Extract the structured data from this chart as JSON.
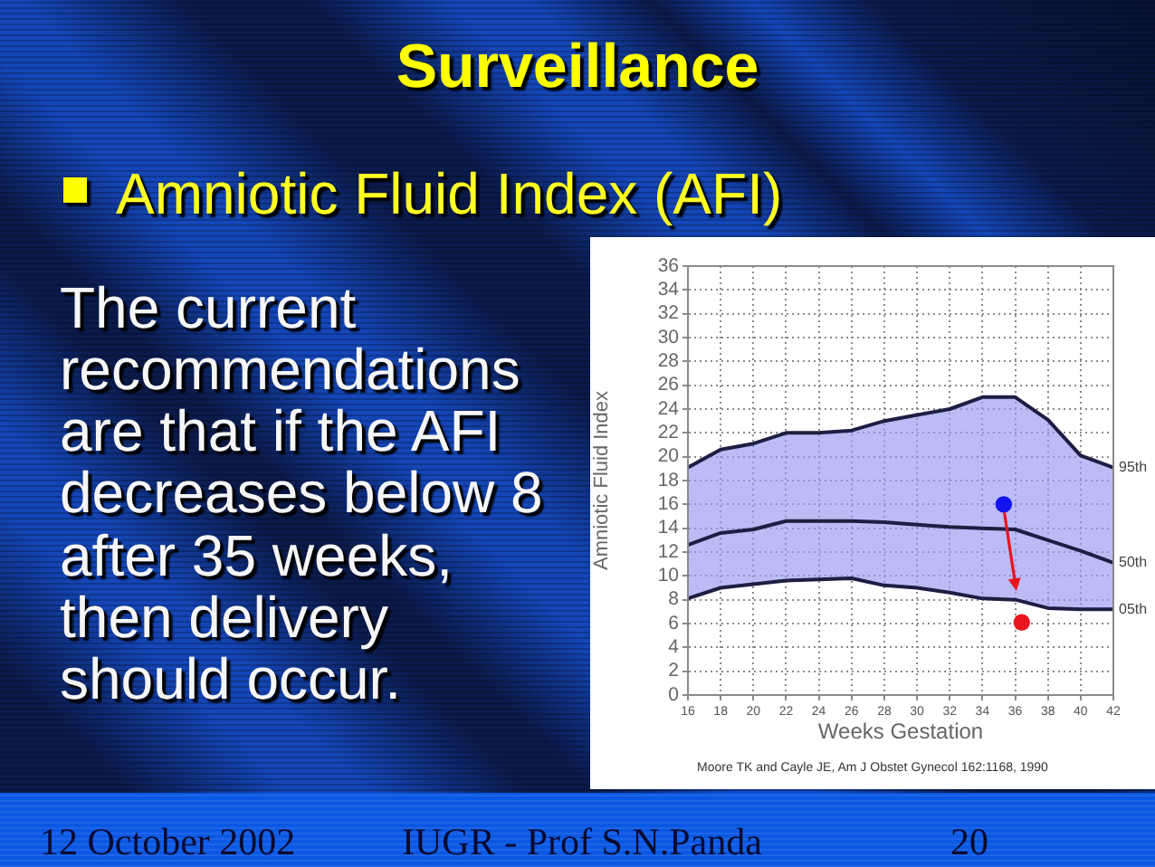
{
  "chart_data": {
    "type": "line",
    "title": "Surveillance",
    "subtitle": "Amniotic Fluid Index (AFI)",
    "xlabel": "Weeks Gestation",
    "ylabel": "Amniotic Fluid Index",
    "annotations": [
      "The current recommendations are that if the AFI decreases below 8 after 35 weeks, then delivery should occur.",
      "Moore TK and Cayle JE, Am J Obstet Gynecol 162:1168, 1990",
      "12 October 2002",
      "IUGR - Prof S.N.Panda",
      "20"
    ],
    "x": [
      16,
      18,
      20,
      22,
      24,
      26,
      28,
      30,
      32,
      34,
      36,
      38,
      40,
      42
    ],
    "series": [
      {
        "name": "95th",
        "color": "#1e1e44",
        "values": [
          19.1,
          20.6,
          21.1,
          22,
          22,
          22.2,
          23,
          23.5,
          24,
          25,
          25,
          23.1,
          20.1,
          19.1
        ]
      },
      {
        "name": "50th",
        "color": "#1e1e44",
        "values": [
          12.6,
          13.6,
          13.9,
          14.6,
          14.6,
          14.6,
          14.5,
          14.3,
          14.1,
          14,
          13.9,
          13,
          12.1,
          11.1
        ],
        "lower": [
          8.1,
          9,
          9.3,
          9.6,
          9.7,
          9.8,
          9.2,
          9,
          8.6,
          8.1,
          8,
          7.3,
          7.2,
          7.2
        ],
        "upper": [
          19.1,
          20.6,
          21.1,
          22,
          22,
          22.2,
          23,
          23.5,
          24,
          25,
          25,
          23.1,
          20.1,
          19.1
        ]
      },
      {
        "name": "05th",
        "color": "#1e1e44",
        "values": [
          8.1,
          9,
          9.3,
          9.6,
          9.7,
          9.8,
          9.2,
          9,
          8.6,
          8.1,
          8,
          7.3,
          7.2,
          7.2
        ]
      },
      {
        "type": "scatter",
        "x": [
          35.3
        ],
        "values": [
          16
        ],
        "color": "#1414ee",
        "marker": "circle"
      },
      {
        "type": "scatter",
        "x": [
          36.4
        ],
        "values": [
          6.1
        ],
        "color": "#e8141e",
        "marker": "circle"
      }
    ],
    "xlim": [
      16,
      42
    ],
    "xticks": [
      16,
      18,
      20,
      22,
      24,
      26,
      28,
      30,
      32,
      34,
      36,
      38,
      40,
      42
    ],
    "ylim": [
      0,
      36
    ],
    "yticks": [
      0,
      2,
      4,
      6,
      8,
      10,
      12,
      14,
      16,
      18,
      20,
      22,
      24,
      26,
      28,
      30,
      32,
      34,
      36
    ],
    "grid": true,
    "marker": "none"
  }
}
